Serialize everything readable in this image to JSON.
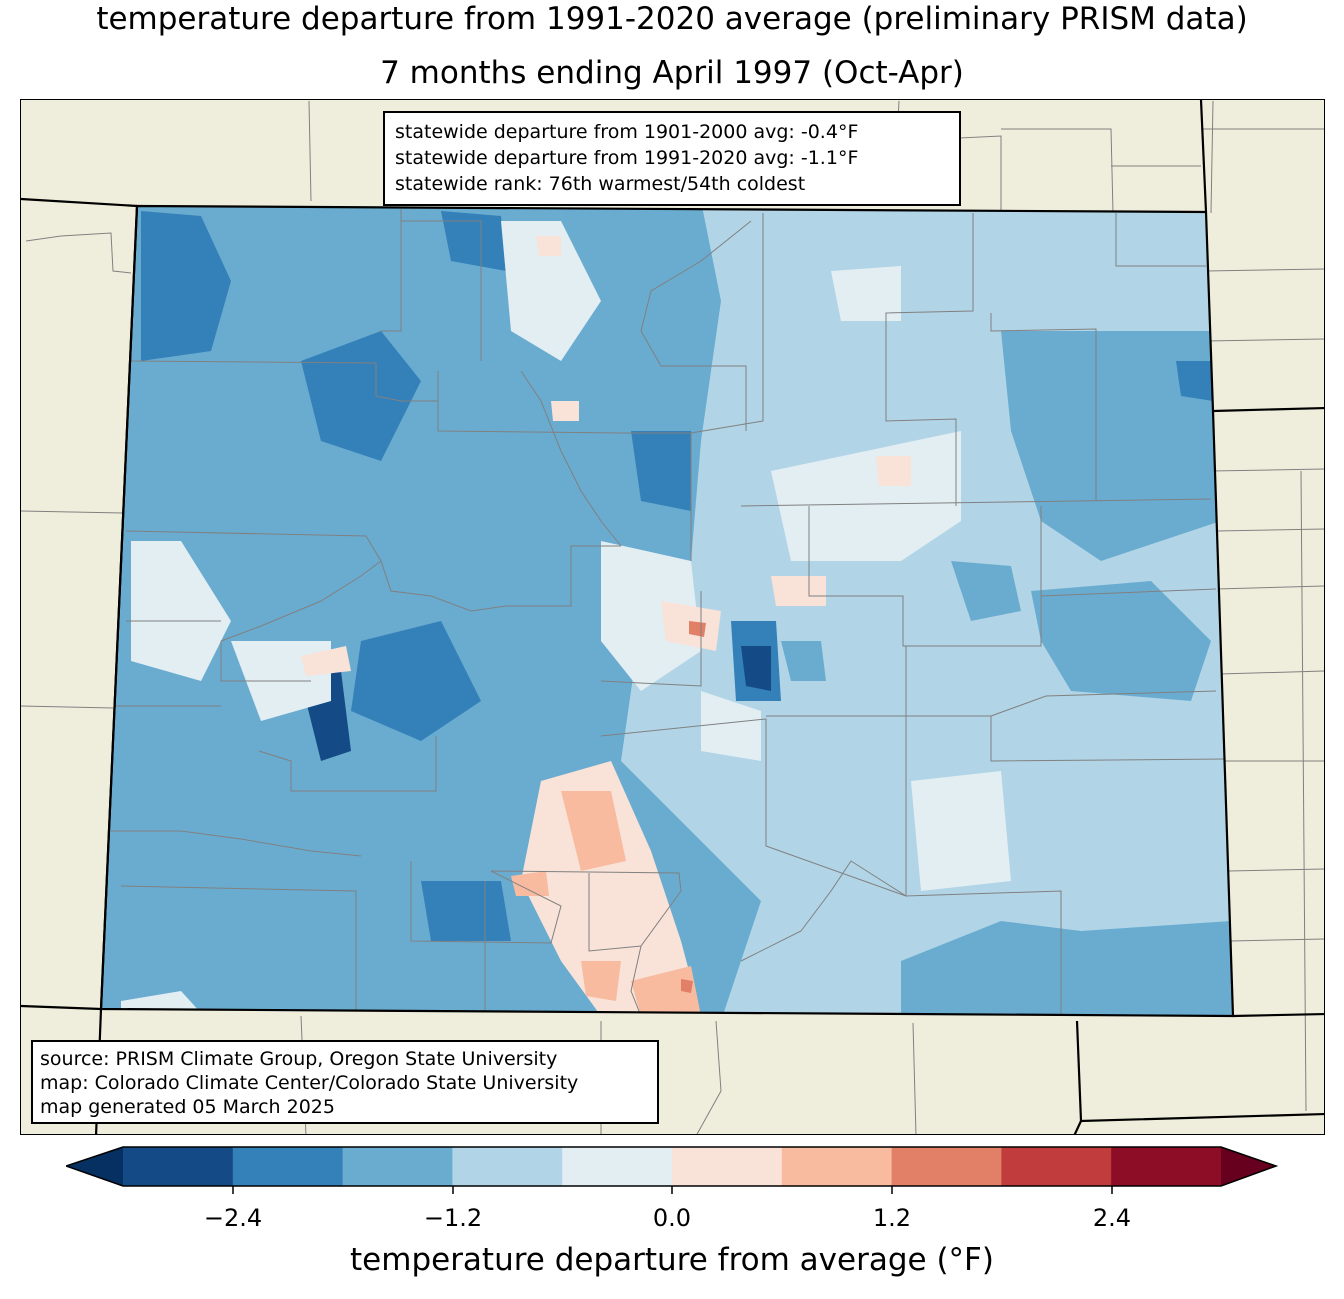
{
  "title_line1": "temperature departure from 1991-2020 average (preliminary PRISM data)",
  "title_line2": "7 months ending April 1997 (Oct-Apr)",
  "stats": {
    "line1": "statewide departure from 1901-2000 avg: -0.4°F",
    "line2": "statewide departure from 1991-2020 avg: -1.1°F",
    "line3": "statewide rank: 76th warmest/54th coldest"
  },
  "source": {
    "line1": "source: PRISM Climate Group, Oregon State University",
    "line2": "map: Colorado Climate Center/Colorado State University",
    "line3": "map generated 05 March 2025"
  },
  "colorbar": {
    "label": "temperature departure from average (°F)",
    "ticks": [
      "−2.4",
      "−1.2",
      "0.0",
      "1.2",
      "2.4"
    ],
    "colors": {
      "under": "#053061",
      "bins": [
        "#144b87",
        "#3480b9",
        "#6aacd0",
        "#b1d5e7",
        "#e3eef3",
        "#f9e2d8",
        "#f8bba0",
        "#e27f67",
        "#c13d3d",
        "#8c0d25"
      ],
      "over": "#67001f"
    }
  },
  "colors": {
    "land": "#efeedd",
    "state_border": "#000000",
    "county_line": "#808080"
  }
}
